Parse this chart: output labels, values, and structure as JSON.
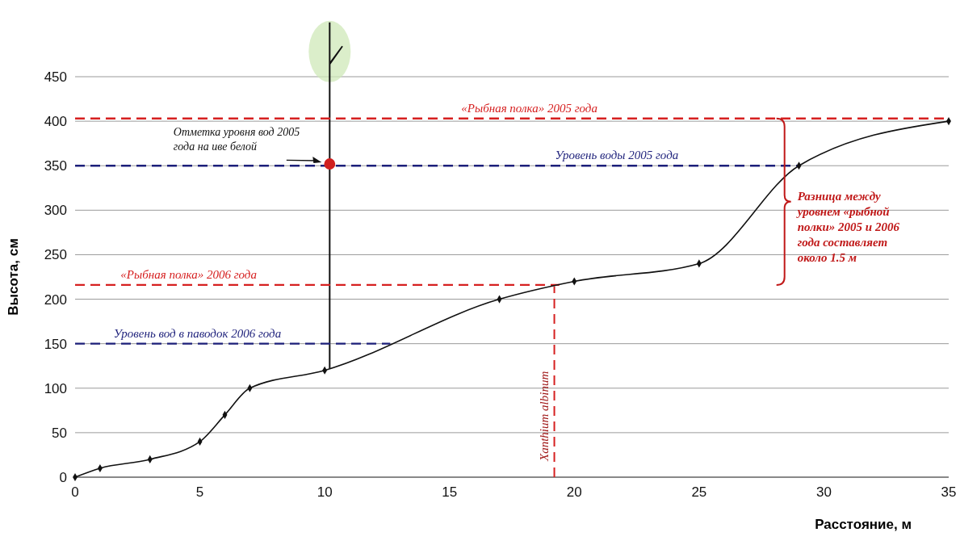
{
  "chart_data": {
    "type": "line",
    "xlabel": "Расстояние, м",
    "ylabel": "Высота, см",
    "xlim": [
      0,
      35
    ],
    "xticks": [
      0,
      5,
      10,
      15,
      20,
      25,
      30,
      35
    ],
    "ylim": [
      0,
      450
    ],
    "yticks": [
      0,
      50,
      100,
      150,
      200,
      250,
      300,
      350,
      400,
      450
    ],
    "grid": "y",
    "marker": "diamond",
    "line_style": "solid",
    "series": [
      {
        "color": "#111111",
        "x": [
          0,
          1,
          3,
          5,
          6,
          7,
          10,
          17,
          20,
          25,
          29,
          35
        ],
        "values": [
          0,
          10,
          20,
          40,
          70,
          100,
          120,
          200,
          220,
          240,
          350,
          400
        ]
      },
      {
        "type": "scatter",
        "color": "#d01f1f",
        "marker": "circle",
        "x": [
          10.2
        ],
        "values": [
          352
        ]
      }
    ],
    "ref_lines": [
      {
        "axis": "y",
        "value": 403,
        "label": "«Рыбная полка» 2005 года",
        "color": "#d62020",
        "line_style": "dashed"
      },
      {
        "axis": "y",
        "value": 350,
        "label": "Уровень воды 2005 года",
        "color": "#1c1f7a",
        "line_style": "dashed"
      },
      {
        "axis": "y",
        "value": 216,
        "label": "«Рыбная полка» 2006 года",
        "color": "#d62020",
        "line_style": "dashed"
      },
      {
        "axis": "y",
        "value": 150,
        "label": "Уровень вод в паводок 2006 года",
        "color": "#1c1f7a",
        "line_style": "dashed"
      },
      {
        "axis": "x",
        "value": 19.2,
        "label": "Xanthium albinum",
        "color": "#d62020",
        "line_style": "dashed"
      }
    ],
    "annotations": [
      "Отметка уровня вод 2005 года на иве белой",
      "Разница между уровнем «рыбной полки» 2005 и 2006 года составляет около 1.5 м"
    ]
  }
}
